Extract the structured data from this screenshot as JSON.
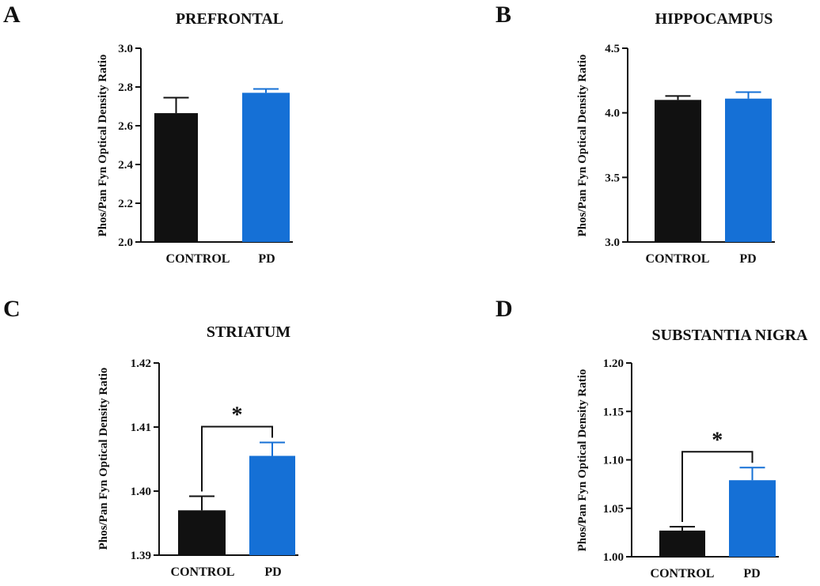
{
  "colors": {
    "control": "#111111",
    "pd": "#1570d6",
    "axis": "#111111"
  },
  "chart_data": [
    {
      "panel": "A",
      "type": "bar",
      "title": "PREFRONTAL",
      "ylabel": "Phos/Pan Fyn Optical Density Ratio",
      "categories": [
        "CONTROL",
        "PD"
      ],
      "values": [
        2.665,
        2.77
      ],
      "errors": [
        0.08,
        0.02
      ],
      "ylim": [
        2.0,
        3.0
      ],
      "yticks": [
        "2.0",
        "2.2",
        "2.4",
        "2.6",
        "2.8",
        "3.0"
      ],
      "significance": ""
    },
    {
      "panel": "B",
      "type": "bar",
      "title": "HIPPOCAMPUS",
      "ylabel": "Phos/Pan Fyn Optical Density Ratio",
      "categories": [
        "CONTROL",
        "PD"
      ],
      "values": [
        4.1,
        4.11
      ],
      "errors": [
        0.03,
        0.05
      ],
      "ylim": [
        3.0,
        4.5
      ],
      "yticks": [
        "3.0",
        "3.5",
        "4.0",
        "4.5"
      ],
      "significance": ""
    },
    {
      "panel": "C",
      "type": "bar",
      "title": "STRIATUM",
      "ylabel": "Phos/Pan Fyn Optical Density Ratio",
      "categories": [
        "CONTROL",
        "PD"
      ],
      "values": [
        1.397,
        1.4055
      ],
      "errors": [
        0.0022,
        0.0021
      ],
      "ylim": [
        1.39,
        1.42
      ],
      "yticks": [
        "1.39",
        "1.40",
        "1.41",
        "1.42"
      ],
      "significance": "*"
    },
    {
      "panel": "D",
      "type": "bar",
      "title": "SUBSTANTIA NIGRA",
      "ylabel": "Phos/Pan Fyn Optical Density Ratio",
      "categories": [
        "CONTROL",
        "PD"
      ],
      "values": [
        1.027,
        1.079
      ],
      "errors": [
        0.004,
        0.013
      ],
      "ylim": [
        1.0,
        1.2
      ],
      "yticks": [
        "1.00",
        "1.05",
        "1.10",
        "1.15",
        "1.20"
      ],
      "significance": "*"
    }
  ]
}
